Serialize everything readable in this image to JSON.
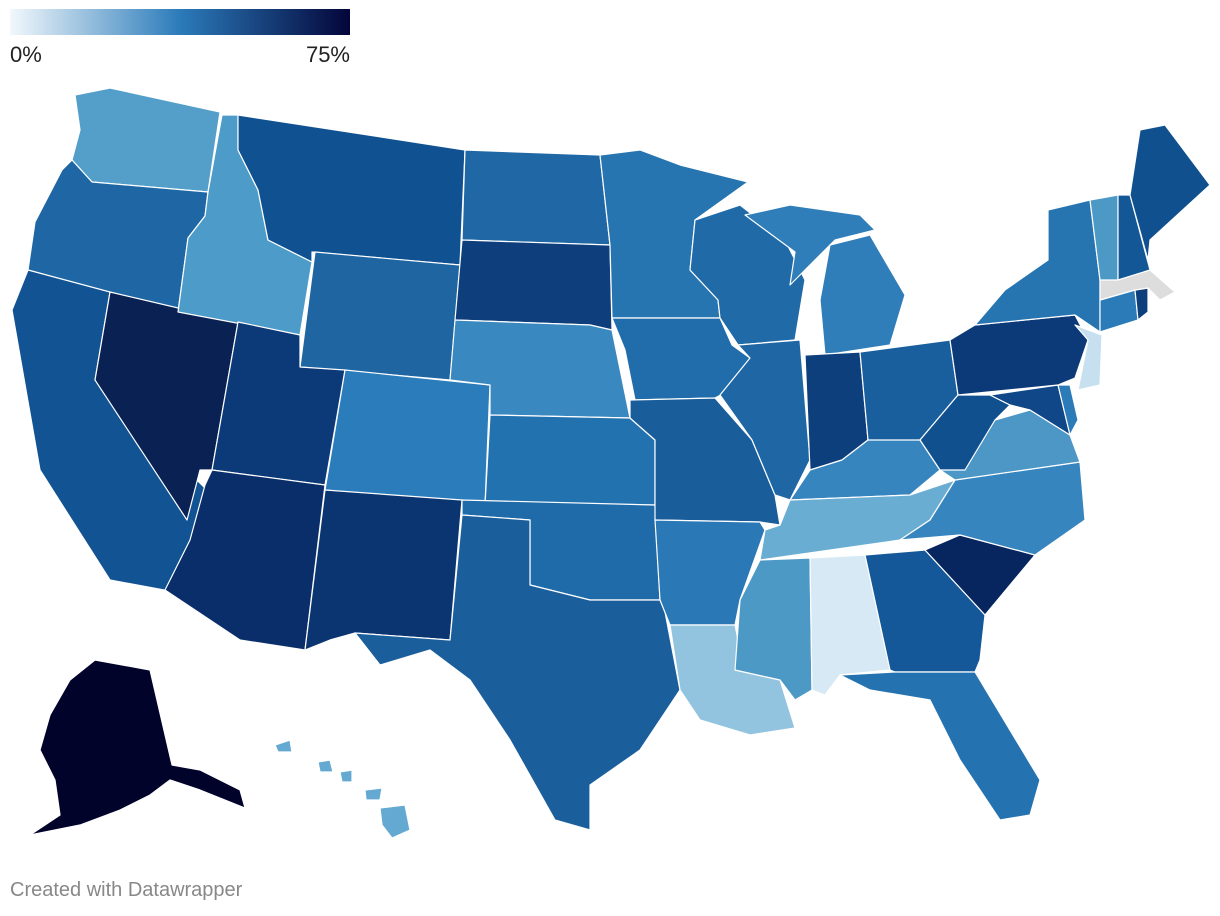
{
  "legend": {
    "min_label": "0%",
    "max_label": "75%",
    "min_value": 0,
    "max_value": 75,
    "color_low": "#f2f8fc",
    "color_mid": "#2b7bba",
    "color_high": "#03053a"
  },
  "no_data_color": "#dddddd",
  "credit": "Created with Datawrapper",
  "states": [
    {
      "abbr": "WA",
      "color": "#549fca"
    },
    {
      "abbr": "OR",
      "color": "#1f67a4"
    },
    {
      "abbr": "CA",
      "color": "#125393"
    },
    {
      "abbr": "NV",
      "color": "#0a2154"
    },
    {
      "abbr": "ID",
      "color": "#4d9bc8"
    },
    {
      "abbr": "MT",
      "color": "#105191"
    },
    {
      "abbr": "WY",
      "color": "#1e65a2"
    },
    {
      "abbr": "UT",
      "color": "#0c3a78"
    },
    {
      "abbr": "AZ",
      "color": "#0a2e69"
    },
    {
      "abbr": "CO",
      "color": "#2a7cba"
    },
    {
      "abbr": "NM",
      "color": "#0b3571"
    },
    {
      "abbr": "ND",
      "color": "#1f68a5"
    },
    {
      "abbr": "SD",
      "color": "#0e3e7c"
    },
    {
      "abbr": "NE",
      "color": "#3a88c0"
    },
    {
      "abbr": "KS",
      "color": "#2372b0"
    },
    {
      "abbr": "OK",
      "color": "#1f6aa8"
    },
    {
      "abbr": "TX",
      "color": "#1b5e9c"
    },
    {
      "abbr": "MN",
      "color": "#2674b0"
    },
    {
      "abbr": "IA",
      "color": "#216dab"
    },
    {
      "abbr": "MO",
      "color": "#195d9b"
    },
    {
      "abbr": "AR",
      "color": "#2a79b6"
    },
    {
      "abbr": "LA",
      "color": "#93c4df"
    },
    {
      "abbr": "WI",
      "color": "#1f6aa7"
    },
    {
      "abbr": "IL",
      "color": "#1e67a4"
    },
    {
      "abbr": "MI",
      "color": "#2f7db9"
    },
    {
      "abbr": "IN",
      "color": "#0e3f7d"
    },
    {
      "abbr": "OH",
      "color": "#1a5f9d"
    },
    {
      "abbr": "KY",
      "color": "#3785bf"
    },
    {
      "abbr": "TN",
      "color": "#6aadd3"
    },
    {
      "abbr": "MS",
      "color": "#4d99c6"
    },
    {
      "abbr": "AL",
      "color": "#d6e9f4"
    },
    {
      "abbr": "GA",
      "color": "#155899"
    },
    {
      "abbr": "FL",
      "color": "#2472b0"
    },
    {
      "abbr": "SC",
      "color": "#072660"
    },
    {
      "abbr": "NC",
      "color": "#3785bf"
    },
    {
      "abbr": "VA",
      "color": "#4c97c6"
    },
    {
      "abbr": "WV",
      "color": "#11508f"
    },
    {
      "abbr": "MD",
      "color": "#0f4788"
    },
    {
      "abbr": "DE",
      "color": "#2a7bb8"
    },
    {
      "abbr": "PA",
      "color": "#0c3a78"
    },
    {
      "abbr": "NJ",
      "color": "#c6e0ef"
    },
    {
      "abbr": "NY",
      "color": "#2674b0"
    },
    {
      "abbr": "CT",
      "color": "#2a7bb8"
    },
    {
      "abbr": "RI",
      "color": "#0e3f7d"
    },
    {
      "abbr": "MA",
      "color": "#dddddd"
    },
    {
      "abbr": "VT",
      "color": "#4d99c6"
    },
    {
      "abbr": "NH",
      "color": "#145797"
    },
    {
      "abbr": "ME",
      "color": "#11508f"
    },
    {
      "abbr": "AK",
      "color": "#02032b"
    },
    {
      "abbr": "HI",
      "color": "#64a9d1"
    }
  ]
}
